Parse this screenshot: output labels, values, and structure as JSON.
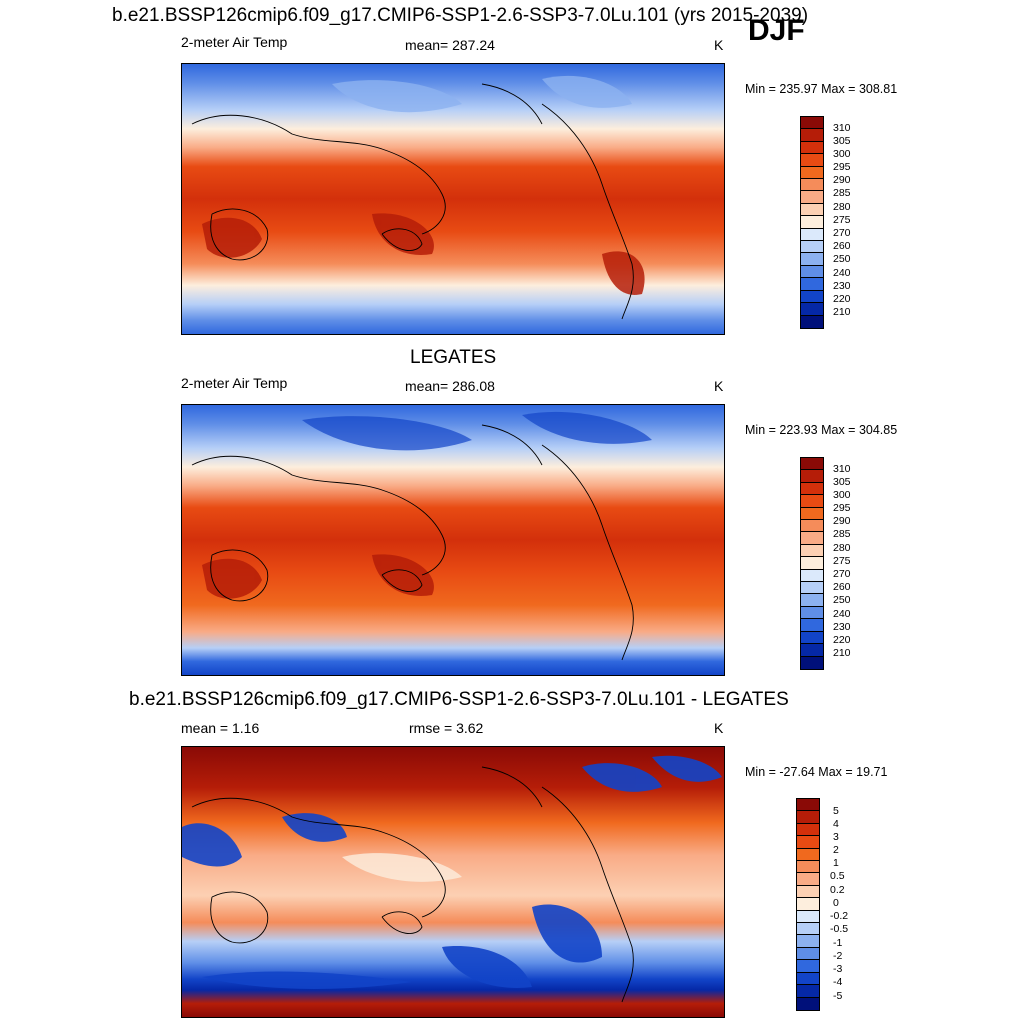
{
  "season": "DJF",
  "panels": [
    {
      "title": "b.e21.BSSP126cmip6.f09_g17.CMIP6-SSP1-2.6-SSP3-7.0Lu.101 (yrs 2015-2039)",
      "left_label": "2-meter Air Temp",
      "center_label": "mean= 287.24",
      "right_label": "K",
      "minmax": "Min = 235.97 Max = 308.81",
      "colorbar_labels": [
        "310",
        "305",
        "300",
        "295",
        "290",
        "285",
        "280",
        "275",
        "270",
        "260",
        "250",
        "240",
        "230",
        "220",
        "210"
      ]
    },
    {
      "title": "LEGATES",
      "left_label": "2-meter Air Temp",
      "center_label": "mean= 286.08",
      "right_label": "K",
      "minmax": "Min = 223.93 Max = 304.85",
      "colorbar_labels": [
        "310",
        "305",
        "300",
        "295",
        "290",
        "285",
        "280",
        "275",
        "270",
        "260",
        "250",
        "240",
        "230",
        "220",
        "210"
      ]
    },
    {
      "title": "b.e21.BSSP126cmip6.f09_g17.CMIP6-SSP1-2.6-SSP3-7.0Lu.101 - LEGATES",
      "left_label": "mean =   1.16",
      "center_label": "rmse =   3.62",
      "right_label": "K",
      "minmax": "Min = -27.64 Max =  19.71",
      "colorbar_labels": [
        "5",
        "4",
        "3",
        "2",
        "1",
        "0.5",
        "0.2",
        "0",
        "-0.2",
        "-0.5",
        "-1",
        "-2",
        "-3",
        "-4",
        "-5"
      ]
    }
  ],
  "colors": {
    "temp_scale": [
      "#8a0a06",
      "#b51d08",
      "#d3300b",
      "#e84b13",
      "#f0691e",
      "#f58c5a",
      "#f9ab86",
      "#fcd0b3",
      "#fdeedd",
      "#dbe9fb",
      "#b6cff7",
      "#8cb1f0",
      "#5f8ee7",
      "#3068de",
      "#1244c8",
      "#0528a6",
      "#00107a"
    ],
    "diff_scale": [
      "#8a0a06",
      "#b51d08",
      "#d3300b",
      "#e84b13",
      "#f0691e",
      "#f58c5a",
      "#f9ab86",
      "#fcd0b3",
      "#fdeedd",
      "#dbe9fb",
      "#b6cff7",
      "#8cb1f0",
      "#5f8ee7",
      "#3068de",
      "#1244c8",
      "#0528a6",
      "#00107a"
    ]
  }
}
